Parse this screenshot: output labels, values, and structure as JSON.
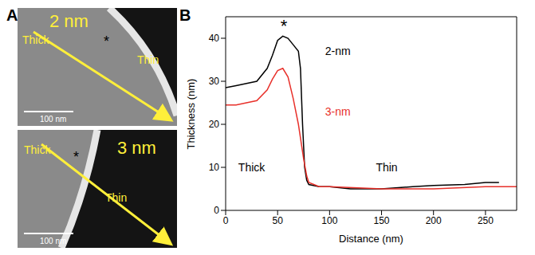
{
  "panel_labels": [
    "A",
    "B"
  ],
  "images": [
    {
      "film": "2 nm",
      "thick": "Thick",
      "thin": "Thin",
      "marker": "*",
      "scale_bar": "100 nm"
    },
    {
      "film": "3 nm",
      "thick": "Thick",
      "thin": "Thin",
      "marker": "*",
      "scale_bar": "100 nm"
    }
  ],
  "chart_data": {
    "type": "line",
    "x_label": "Distance (nm)",
    "y_label": "Thickness (nm)",
    "xlim": [
      0,
      280
    ],
    "xticks": [
      0,
      50,
      100,
      150,
      200,
      250
    ],
    "ylim": [
      0,
      45
    ],
    "yticks": [
      0,
      10,
      20,
      30,
      40
    ],
    "series": [
      {
        "name": "2-nm",
        "color": "#000000",
        "x": [
          0,
          10,
          20,
          30,
          40,
          45,
          50,
          55,
          60,
          65,
          70,
          72,
          74,
          76,
          78,
          80,
          90,
          100,
          120,
          150,
          180,
          200,
          230,
          250,
          263
        ],
        "values": [
          28.5,
          29,
          29.5,
          30,
          33,
          36,
          39.5,
          40.5,
          40,
          38.5,
          37,
          33,
          20,
          10,
          7,
          6,
          5.5,
          5.5,
          5,
          5,
          5.5,
          5.8,
          6,
          6.5,
          6.5
        ]
      },
      {
        "name": "3-nm",
        "color": "#e8302a",
        "x": [
          0,
          10,
          20,
          30,
          40,
          45,
          50,
          55,
          60,
          65,
          70,
          75,
          78,
          80,
          90,
          100,
          150,
          200,
          250,
          280
        ],
        "values": [
          24.5,
          24.5,
          25,
          25.5,
          28,
          30.5,
          32.5,
          33,
          31,
          26,
          20,
          12,
          8,
          6.5,
          5.5,
          5.5,
          5,
          5,
          5.5,
          5.5
        ]
      }
    ],
    "annotations": [
      {
        "text": "*",
        "x": 56,
        "y": 43
      },
      {
        "text": "2-nm",
        "x": 108,
        "y": 37
      },
      {
        "text": "3-nm",
        "x": 108,
        "y": 23
      },
      {
        "text": "Thick",
        "x": 25,
        "y": 10
      },
      {
        "text": "Thin",
        "x": 155,
        "y": 10
      }
    ]
  }
}
